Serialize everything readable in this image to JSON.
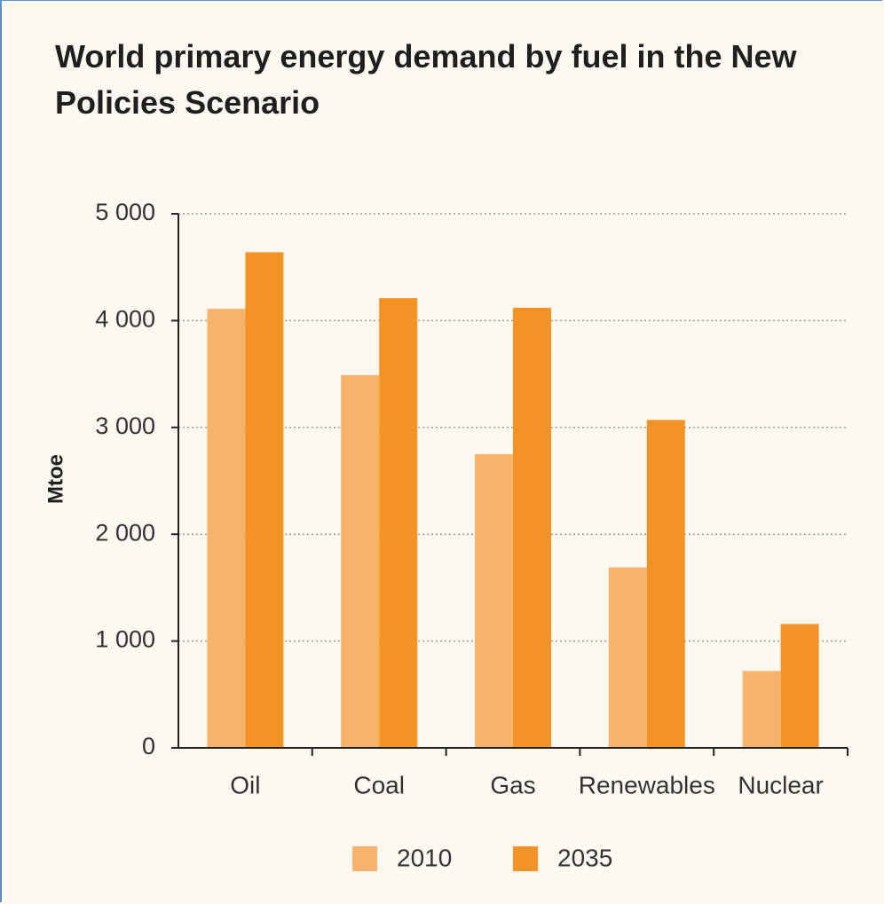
{
  "chart_data": {
    "type": "bar",
    "title": "World primary energy demand by fuel in the New Policies Scenario",
    "ylabel": "Mtoe",
    "categories": [
      "Oil",
      "Coal",
      "Gas",
      "Renewables",
      "Nuclear"
    ],
    "series": [
      {
        "name": "2010",
        "color": "#f7b36b",
        "values": [
          4110,
          3490,
          2750,
          1690,
          720
        ]
      },
      {
        "name": "2035",
        "color": "#f39325",
        "values": [
          4640,
          4210,
          4120,
          3070,
          1160
        ]
      }
    ],
    "ylim": [
      0,
      5000
    ],
    "yticks": [
      0,
      {
        "value": 1000,
        "label": "1 000"
      },
      {
        "value": 2000,
        "label": "2 000"
      },
      {
        "value": 3000,
        "label": "3 000"
      },
      {
        "value": 4000,
        "label": "4 000"
      },
      {
        "value": 5000,
        "label": "5 000"
      }
    ],
    "grid": true,
    "legend": "bottom"
  }
}
